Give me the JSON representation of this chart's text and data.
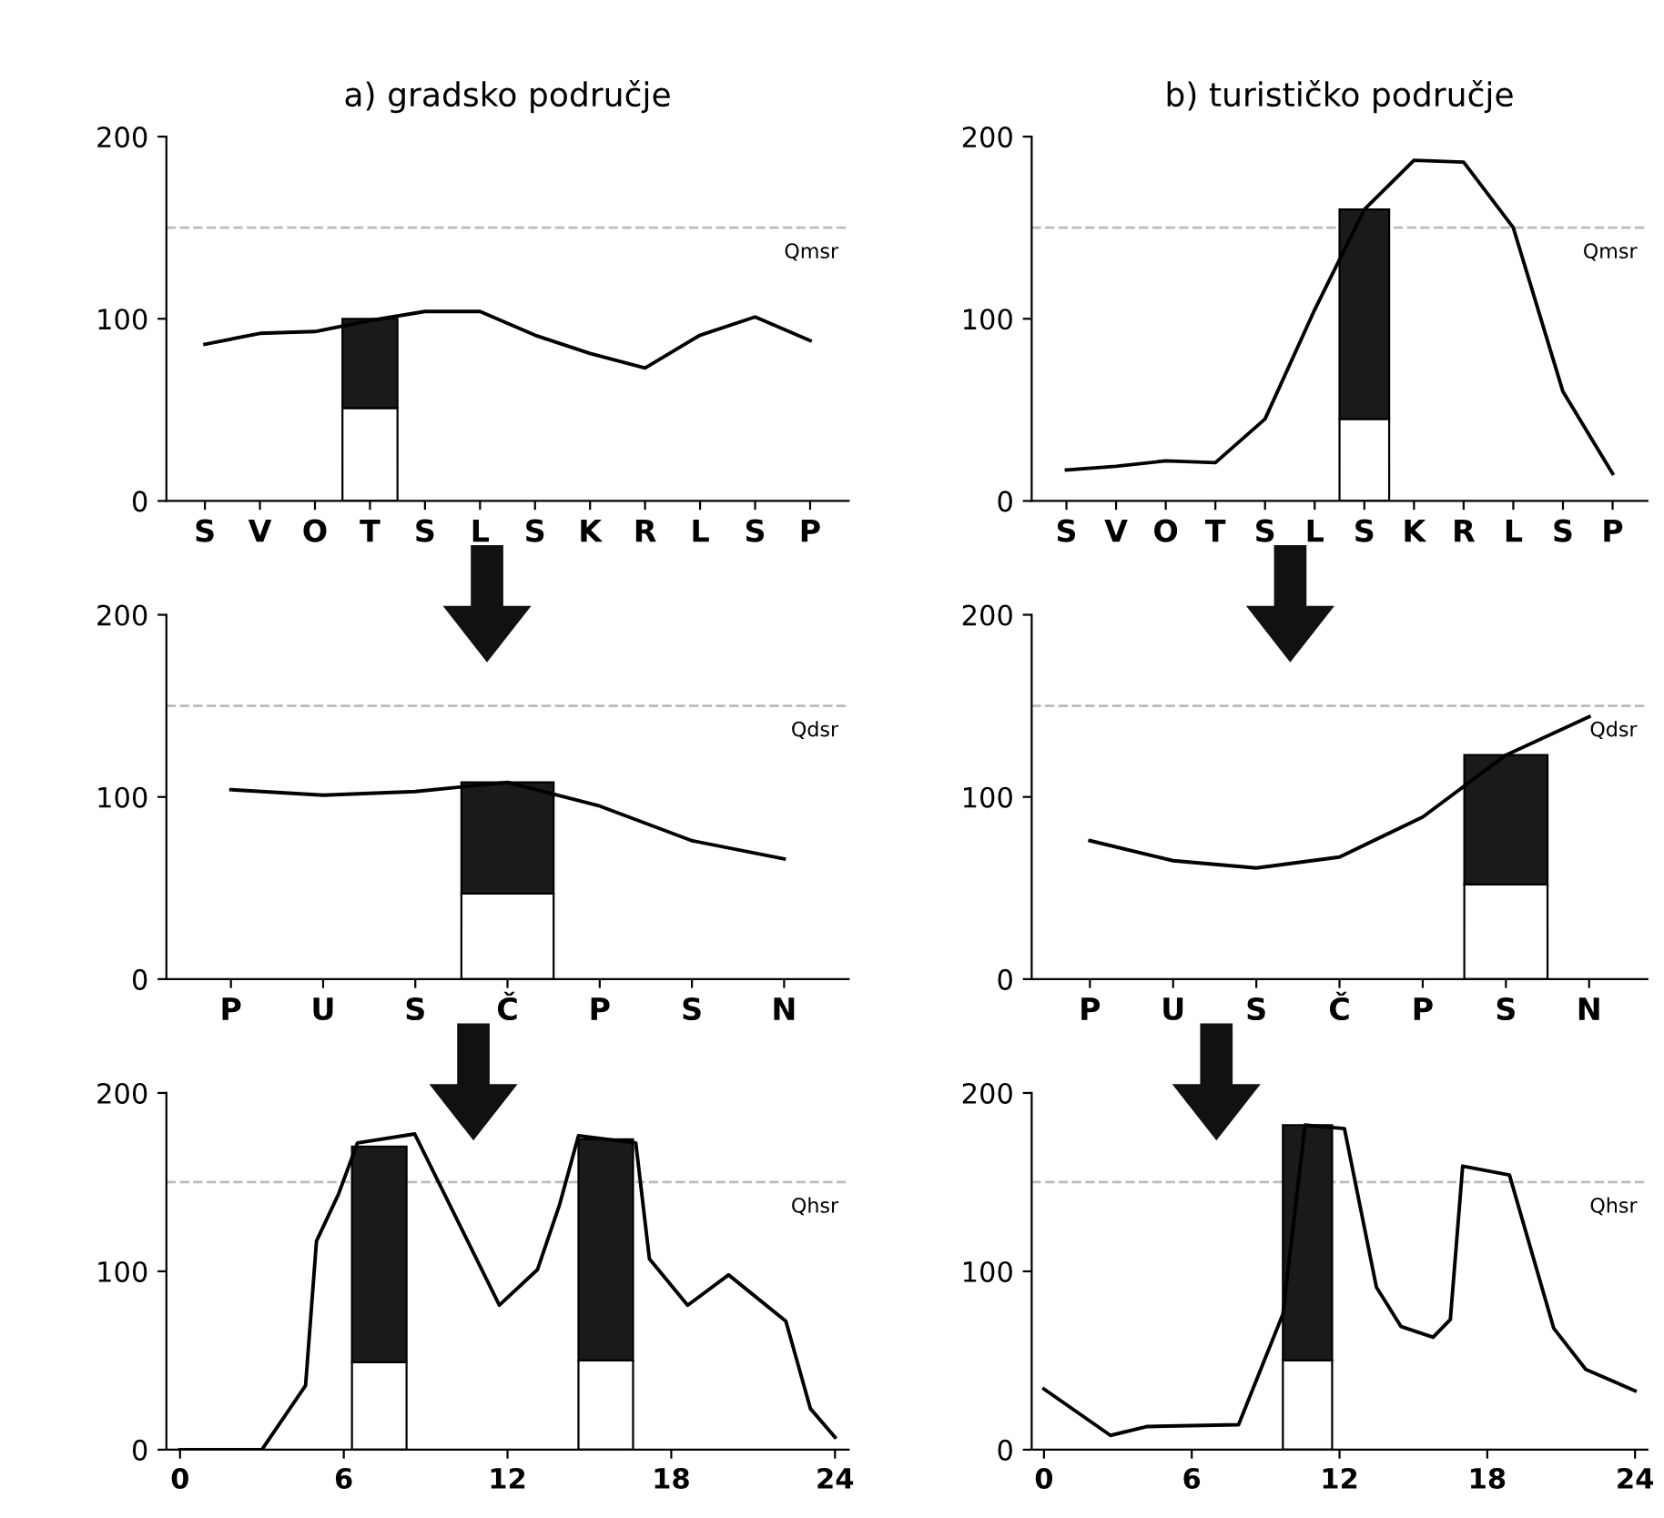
{
  "chart_data": [
    {
      "type": "bar",
      "title": "a) gradsko područje",
      "categories": [
        "S",
        "V",
        "O",
        "T",
        "S",
        "L",
        "S",
        "K",
        "R",
        "L",
        "S",
        "P"
      ],
      "stacked": true,
      "series": [
        {
          "type": "line",
          "color": "#000000",
          "values": [
            86,
            92,
            93,
            99,
            104,
            104,
            91,
            81,
            73,
            91,
            101,
            88
          ]
        },
        {
          "color": "#ffffff",
          "values": [
            null,
            null,
            null,
            51,
            null,
            null,
            null,
            null,
            null,
            null,
            null,
            null
          ]
        },
        {
          "color": "#1a1a1a",
          "values": [
            null,
            null,
            null,
            49,
            null,
            null,
            null,
            null,
            null,
            null,
            null,
            null
          ]
        }
      ],
      "ylim": [
        0,
        200
      ],
      "yticks": [
        0,
        100,
        200
      ],
      "ref_lines": [
        {
          "axis": "y",
          "value": 150,
          "label": "Qmsr",
          "color": "#bbbbbb",
          "line_style": "dashed"
        }
      ]
    },
    {
      "type": "bar",
      "title": "b) turističko područje",
      "categories": [
        "S",
        "V",
        "O",
        "T",
        "S",
        "L",
        "S",
        "K",
        "R",
        "L",
        "S",
        "P"
      ],
      "stacked": true,
      "series": [
        {
          "type": "line",
          "color": "#000000",
          "values": [
            17,
            19,
            22,
            21,
            45,
            105,
            160,
            187,
            186,
            150,
            60,
            15
          ]
        },
        {
          "color": "#ffffff",
          "values": [
            null,
            null,
            null,
            null,
            null,
            null,
            45,
            null,
            null,
            null,
            null,
            null
          ]
        },
        {
          "color": "#1a1a1a",
          "values": [
            null,
            null,
            null,
            null,
            null,
            null,
            115,
            null,
            null,
            null,
            null,
            null
          ]
        }
      ],
      "ylim": [
        0,
        200
      ],
      "yticks": [
        0,
        100,
        200
      ],
      "ref_lines": [
        {
          "axis": "y",
          "value": 150,
          "label": "Qmsr",
          "color": "#bbbbbb",
          "line_style": "dashed"
        }
      ]
    },
    {
      "type": "bar",
      "categories": [
        "P",
        "U",
        "S",
        "Č",
        "P",
        "S",
        "N"
      ],
      "stacked": true,
      "series": [
        {
          "type": "line",
          "color": "#000000",
          "values": [
            104,
            101,
            103,
            108,
            95,
            76,
            66
          ]
        },
        {
          "color": "#ffffff",
          "values": [
            null,
            null,
            null,
            47,
            null,
            null,
            null
          ]
        },
        {
          "color": "#1a1a1a",
          "values": [
            null,
            null,
            null,
            61,
            null,
            null,
            null
          ]
        }
      ],
      "ylim": [
        0,
        200
      ],
      "yticks": [
        0,
        100,
        200
      ],
      "ref_lines": [
        {
          "axis": "y",
          "value": 150,
          "label": "Qdsr",
          "color": "#bbbbbb",
          "line_style": "dashed"
        }
      ]
    },
    {
      "type": "bar",
      "categories": [
        "P",
        "U",
        "S",
        "Č",
        "P",
        "S",
        "N"
      ],
      "stacked": true,
      "series": [
        {
          "type": "line",
          "color": "#000000",
          "values": [
            76,
            65,
            61,
            67,
            89,
            123,
            144
          ]
        },
        {
          "color": "#ffffff",
          "values": [
            null,
            null,
            null,
            null,
            null,
            52,
            null
          ]
        },
        {
          "color": "#1a1a1a",
          "values": [
            null,
            null,
            null,
            null,
            null,
            71,
            null
          ]
        }
      ],
      "ylim": [
        0,
        200
      ],
      "yticks": [
        0,
        100,
        200
      ],
      "ref_lines": [
        {
          "axis": "y",
          "value": 150,
          "label": "Qdsr",
          "color": "#bbbbbb",
          "line_style": "dashed"
        }
      ]
    },
    {
      "type": "line",
      "stacked": true,
      "series": [
        {
          "color": "#000000",
          "x": [
            0,
            3,
            4.6,
            5,
            5.8,
            6.5,
            8.6,
            11.7,
            13.1,
            13.9,
            14.6,
            16.7,
            17.2,
            18.6,
            20.1,
            22.2,
            23.1,
            24
          ],
          "values": [
            0,
            0,
            36,
            117,
            143,
            172,
            177,
            81,
            101,
            137,
            176,
            172,
            107,
            81,
            98,
            72,
            23,
            7
          ]
        },
        {
          "type": "bar",
          "color": "#ffffff",
          "x": [
            7.3,
            15.6
          ],
          "values": [
            49,
            50
          ]
        },
        {
          "type": "bar",
          "color": "#1a1a1a",
          "x": [
            7.3,
            15.6
          ],
          "values": [
            121,
            124
          ]
        }
      ],
      "xlim": [
        -0.5,
        24.5
      ],
      "xticks": [
        0,
        6,
        12,
        18,
        24
      ],
      "ylim": [
        0,
        200
      ],
      "yticks": [
        0,
        100,
        200
      ],
      "ref_lines": [
        {
          "axis": "y",
          "value": 150,
          "label": "Qhsr",
          "color": "#bbbbbb",
          "line_style": "dashed"
        }
      ]
    },
    {
      "type": "line",
      "stacked": true,
      "series": [
        {
          "color": "#000000",
          "x": [
            0,
            2.7,
            4.2,
            7.9,
            9.7,
            10.6,
            12.2,
            13.5,
            14.5,
            15.8,
            16.5,
            17,
            18.9,
            20.7,
            22,
            24
          ],
          "values": [
            34,
            8,
            13,
            14,
            76,
            182,
            180,
            91,
            69,
            63,
            73,
            159,
            154,
            68,
            45,
            33
          ]
        },
        {
          "type": "bar",
          "color": "#ffffff",
          "x": [
            10.7
          ],
          "values": [
            50
          ]
        },
        {
          "type": "bar",
          "color": "#1a1a1a",
          "x": [
            10.7
          ],
          "values": [
            132
          ]
        }
      ],
      "xlim": [
        -0.5,
        24.5
      ],
      "xticks": [
        0,
        6,
        12,
        18,
        24
      ],
      "ylim": [
        0,
        200
      ],
      "yticks": [
        0,
        100,
        200
      ],
      "ref_lines": [
        {
          "axis": "y",
          "value": 150,
          "label": "Qhsr",
          "color": "#bbbbbb",
          "line_style": "dashed"
        }
      ]
    }
  ]
}
